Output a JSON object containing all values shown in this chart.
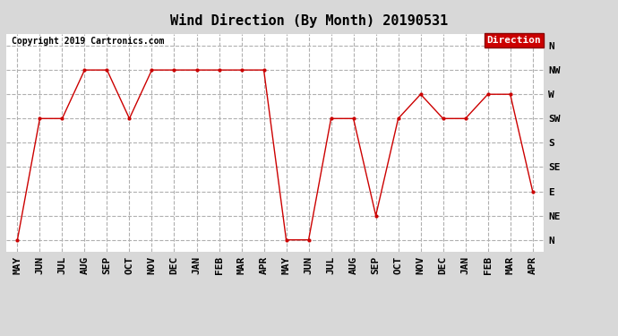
{
  "title": "Wind Direction (By Month) 20190531",
  "copyright": "Copyright 2019 Cartronics.com",
  "legend_label": "Direction",
  "legend_bg": "#cc0000",
  "legend_fg": "#ffffff",
  "x_labels": [
    "MAY",
    "JUN",
    "JUL",
    "AUG",
    "SEP",
    "OCT",
    "NOV",
    "DEC",
    "JAN",
    "FEB",
    "MAR",
    "APR",
    "MAY",
    "JUN",
    "JUL",
    "AUG",
    "SEP",
    "OCT",
    "NOV",
    "DEC",
    "JAN",
    "FEB",
    "MAR",
    "APR"
  ],
  "y_labels": [
    "N",
    "NE",
    "E",
    "SE",
    "S",
    "SW",
    "W",
    "NW",
    "N"
  ],
  "y_values": [
    0,
    1,
    2,
    3,
    4,
    5,
    6,
    7,
    8
  ],
  "data_points": [
    0,
    5,
    5,
    7,
    7,
    5,
    7,
    7,
    7,
    7,
    7,
    7,
    0,
    0,
    5,
    5,
    1,
    5,
    6,
    5,
    5,
    6,
    6,
    2
  ],
  "line_color": "#cc0000",
  "marker_size": 4,
  "bg_color": "#d8d8d8",
  "plot_bg": "#ffffff",
  "grid_color": "#b0b0b0",
  "grid_style": "--",
  "title_fontsize": 11,
  "copyright_fontsize": 7,
  "tick_fontsize": 8
}
